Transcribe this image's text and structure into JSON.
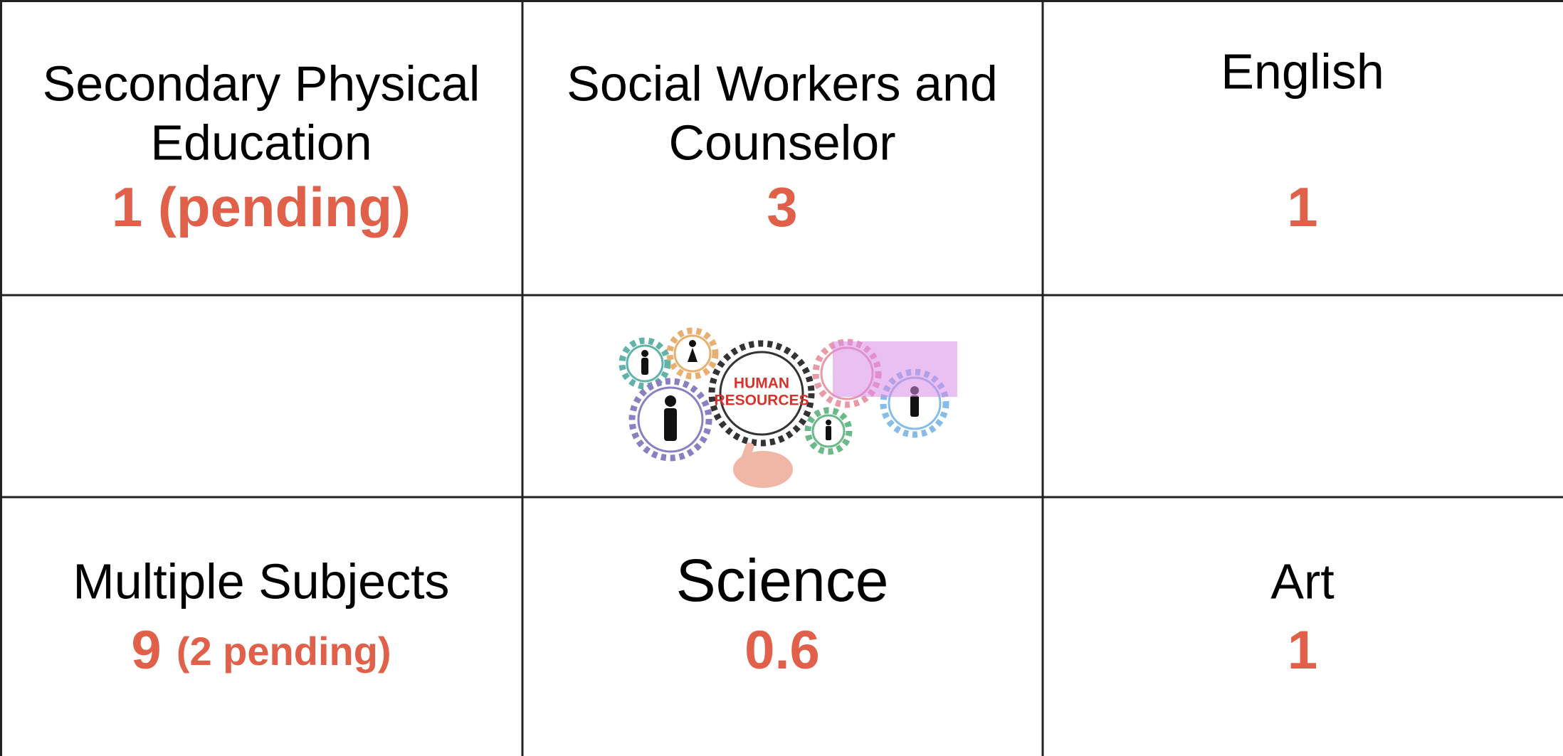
{
  "table": {
    "rows": [
      [
        {
          "title": [
            "Secondary Physical",
            "Education"
          ],
          "count": "1 (pending)"
        },
        {
          "title": [
            "Social Workers and",
            "Counselor"
          ],
          "count": "3"
        },
        {
          "title": [
            "English"
          ],
          "count": "1"
        }
      ],
      [
        {
          "title": [
            "Multiple Subjects"
          ],
          "count": "9",
          "note": "(2 pending)"
        },
        {
          "title": [
            "Science"
          ],
          "count": "0.6"
        },
        {
          "title": [
            "Art"
          ],
          "count": "1"
        }
      ]
    ],
    "banner": {
      "lines": [
        "HUMAN",
        "RESOURCES"
      ]
    }
  }
}
